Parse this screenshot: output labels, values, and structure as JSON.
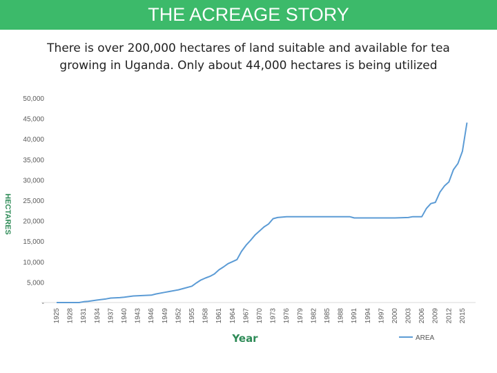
{
  "header": {
    "title": "THE ACREAGE STORY"
  },
  "subtitle": {
    "line1": "There is over 200,000 hectares of land suitable and available for tea",
    "line2": "growing in Uganda. Only about 44,000 hectares is being utilized"
  },
  "colors": {
    "title_bar": "#3cba6a",
    "line": "#5b9bd5",
    "axis_title": "#2e8b57"
  },
  "chart_data": {
    "type": "line",
    "xlabel": "Year",
    "ylabel": "HECTARES",
    "xlim": [
      1925,
      2017
    ],
    "ylim": [
      0,
      50000
    ],
    "grid": false,
    "legend_position": "bottom-right",
    "x_ticks": [
      1925,
      1928,
      1931,
      1934,
      1937,
      1940,
      1943,
      1946,
      1949,
      1952,
      1955,
      1958,
      1961,
      1964,
      1967,
      1970,
      1973,
      1976,
      1979,
      1982,
      1985,
      1988,
      1991,
      1994,
      1997,
      2000,
      2003,
      2006,
      2009,
      2012,
      2015
    ],
    "y_ticks": [
      0,
      5000,
      10000,
      15000,
      20000,
      25000,
      30000,
      35000,
      40000,
      45000,
      50000
    ],
    "y_tick_labels": [
      "-",
      "5,000",
      "10,000",
      "15,000",
      "20,000",
      "25,000",
      "30,000",
      "35,000",
      "40,000",
      "45,000",
      "50,000"
    ],
    "series": [
      {
        "name": "AREA",
        "x": [
          1925,
          1928,
          1930,
          1931,
          1932,
          1934,
          1936,
          1937,
          1939,
          1940,
          1942,
          1944,
          1946,
          1947,
          1949,
          1950,
          1952,
          1953,
          1955,
          1956,
          1957,
          1958,
          1959,
          1960,
          1961,
          1962,
          1963,
          1964,
          1965,
          1966,
          1967,
          1968,
          1969,
          1970,
          1971,
          1972,
          1973,
          1974,
          1976,
          1980,
          1985,
          1990,
          1991,
          1995,
          2000,
          2003,
          2004,
          2006,
          2007,
          2008,
          2009,
          2010,
          2011,
          2012,
          2013,
          2014,
          2015,
          2016
        ],
        "y": [
          0,
          0,
          0,
          200,
          300,
          600,
          900,
          1100,
          1200,
          1300,
          1600,
          1700,
          1800,
          2100,
          2500,
          2700,
          3100,
          3400,
          4000,
          4800,
          5500,
          6000,
          6400,
          7000,
          8000,
          8700,
          9500,
          10000,
          10500,
          12500,
          14000,
          15200,
          16500,
          17500,
          18500,
          19200,
          20500,
          20800,
          21000,
          21000,
          21000,
          21000,
          20700,
          20700,
          20700,
          20800,
          21000,
          21000,
          23000,
          24200,
          24500,
          27000,
          28500,
          29500,
          32500,
          34000,
          37000,
          44000
        ]
      }
    ]
  }
}
